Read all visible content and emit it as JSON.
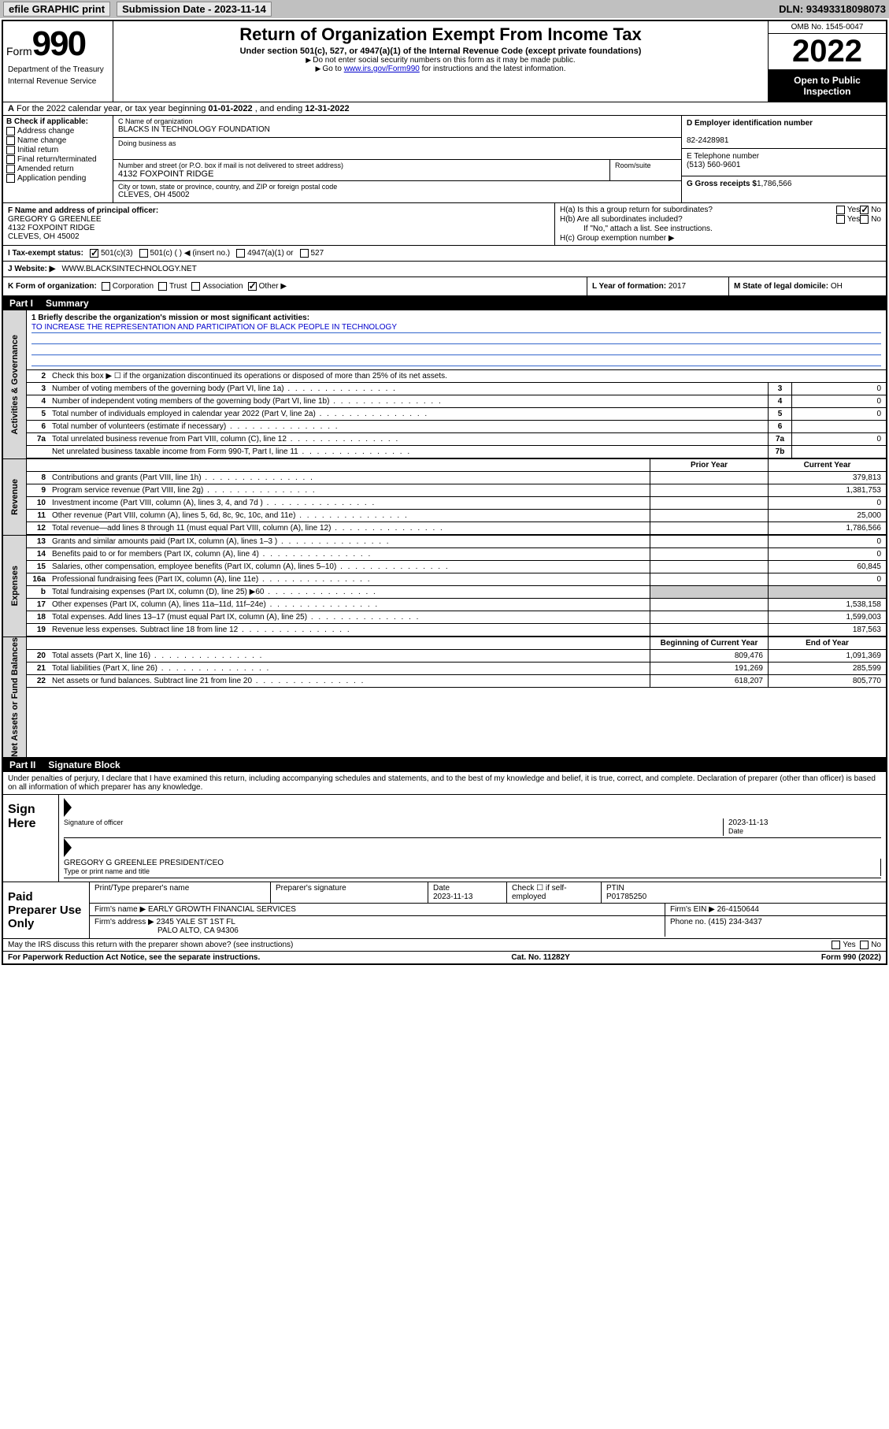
{
  "header": {
    "efile": "efile GRAPHIC print",
    "sub_label": "Submission Date - 2023-11-14",
    "dln": "DLN: 93493318098073"
  },
  "top": {
    "form_prefix": "Form",
    "form_num": "990",
    "dept": "Department of the Treasury",
    "irs": "Internal Revenue Service",
    "title": "Return of Organization Exempt From Income Tax",
    "subtitle": "Under section 501(c), 527, or 4947(a)(1) of the Internal Revenue Code (except private foundations)",
    "note1": "Do not enter social security numbers on this form as it may be made public.",
    "note2_pre": "Go to ",
    "note2_link": "www.irs.gov/Form990",
    "note2_post": " for instructions and the latest information.",
    "omb": "OMB No. 1545-0047",
    "year": "2022",
    "open": "Open to Public Inspection"
  },
  "rowA": {
    "text_pre": "For the 2022 calendar year, or tax year beginning ",
    "begin": "01-01-2022",
    "mid": " , and ending ",
    "end": "12-31-2022"
  },
  "blockB": {
    "title": "B Check if applicable:",
    "opts": [
      "Address change",
      "Name change",
      "Initial return",
      "Final return/terminated",
      "Amended return",
      "Application pending"
    ],
    "c_name_lbl": "C Name of organization",
    "c_name": "BLACKS IN TECHNOLOGY FOUNDATION",
    "dba_lbl": "Doing business as",
    "addr_lbl": "Number and street (or P.O. box if mail is not delivered to street address)",
    "addr": "4132 FOXPOINT RIDGE",
    "room_lbl": "Room/suite",
    "city_lbl": "City or town, state or province, country, and ZIP or foreign postal code",
    "city": "CLEVES, OH  45002",
    "d_lbl": "D Employer identification number",
    "d_val": "82-2428981",
    "e_lbl": "E Telephone number",
    "e_val": "(513) 560-9601",
    "g_lbl": "G Gross receipts $",
    "g_val": "1,786,566"
  },
  "blockFH": {
    "f_lbl": "F Name and address of principal officer:",
    "f_name": "GREGORY G GREENLEE",
    "f_addr1": "4132 FOXPOINT RIDGE",
    "f_addr2": "CLEVES, OH  45002",
    "ha": "H(a)  Is this a group return for subordinates?",
    "hb": "H(b)  Are all subordinates included?",
    "hb_note": "If \"No,\" attach a list. See instructions.",
    "hc": "H(c)  Group exemption number ▶",
    "yes": "Yes",
    "no": "No"
  },
  "rowI": {
    "lbl": "I  Tax-exempt status:",
    "o1": "501(c)(3)",
    "o2": "501(c) (  ) ◀ (insert no.)",
    "o3": "4947(a)(1) or",
    "o4": "527"
  },
  "rowJ": {
    "lbl": "J  Website: ▶",
    "val": "WWW.BLACKSINTECHNOLOGY.NET"
  },
  "rowK": {
    "lbl": "K Form of organization:",
    "opts": [
      "Corporation",
      "Trust",
      "Association",
      "Other ▶"
    ],
    "l_lbl": "L Year of formation:",
    "l_val": "2017",
    "m_lbl": "M State of legal domicile:",
    "m_val": "OH"
  },
  "part1": {
    "n": "Part I",
    "t": "Summary"
  },
  "gov": {
    "tab": "Activities & Governance",
    "mission_lbl": "1  Briefly describe the organization's mission or most significant activities:",
    "mission": "TO INCREASE THE REPRESENTATION AND PARTICIPATION OF BLACK PEOPLE IN TECHNOLOGY",
    "l2": "Check this box ▶ ☐  if the organization discontinued its operations or disposed of more than 25% of its net assets.",
    "rows": [
      {
        "n": "3",
        "d": "Number of voting members of the governing body (Part VI, line 1a)",
        "box": "3",
        "v": "0"
      },
      {
        "n": "4",
        "d": "Number of independent voting members of the governing body (Part VI, line 1b)",
        "box": "4",
        "v": "0"
      },
      {
        "n": "5",
        "d": "Total number of individuals employed in calendar year 2022 (Part V, line 2a)",
        "box": "5",
        "v": "0"
      },
      {
        "n": "6",
        "d": "Total number of volunteers (estimate if necessary)",
        "box": "6",
        "v": ""
      },
      {
        "n": "7a",
        "d": "Total unrelated business revenue from Part VIII, column (C), line 12",
        "box": "7a",
        "v": "0"
      },
      {
        "n": "",
        "d": "Net unrelated business taxable income from Form 990-T, Part I, line 11",
        "box": "7b",
        "v": ""
      }
    ]
  },
  "rev": {
    "tab": "Revenue",
    "h1": "Prior Year",
    "h2": "Current Year",
    "rows": [
      {
        "n": "8",
        "d": "Contributions and grants (Part VIII, line 1h)",
        "c1": "",
        "c2": "379,813"
      },
      {
        "n": "9",
        "d": "Program service revenue (Part VIII, line 2g)",
        "c1": "",
        "c2": "1,381,753"
      },
      {
        "n": "10",
        "d": "Investment income (Part VIII, column (A), lines 3, 4, and 7d )",
        "c1": "",
        "c2": "0"
      },
      {
        "n": "11",
        "d": "Other revenue (Part VIII, column (A), lines 5, 6d, 8c, 9c, 10c, and 11e)",
        "c1": "",
        "c2": "25,000"
      },
      {
        "n": "12",
        "d": "Total revenue—add lines 8 through 11 (must equal Part VIII, column (A), line 12)",
        "c1": "",
        "c2": "1,786,566"
      }
    ]
  },
  "exp": {
    "tab": "Expenses",
    "rows": [
      {
        "n": "13",
        "d": "Grants and similar amounts paid (Part IX, column (A), lines 1–3 )",
        "c1": "",
        "c2": "0"
      },
      {
        "n": "14",
        "d": "Benefits paid to or for members (Part IX, column (A), line 4)",
        "c1": "",
        "c2": "0"
      },
      {
        "n": "15",
        "d": "Salaries, other compensation, employee benefits (Part IX, column (A), lines 5–10)",
        "c1": "",
        "c2": "60,845"
      },
      {
        "n": "16a",
        "d": "Professional fundraising fees (Part IX, column (A), line 11e)",
        "c1": "",
        "c2": "0"
      },
      {
        "n": "b",
        "d": "Total fundraising expenses (Part IX, column (D), line 25) ▶60",
        "c1": "—",
        "c2": "—"
      },
      {
        "n": "17",
        "d": "Other expenses (Part IX, column (A), lines 11a–11d, 11f–24e)",
        "c1": "",
        "c2": "1,538,158"
      },
      {
        "n": "18",
        "d": "Total expenses. Add lines 13–17 (must equal Part IX, column (A), line 25)",
        "c1": "",
        "c2": "1,599,003"
      },
      {
        "n": "19",
        "d": "Revenue less expenses. Subtract line 18 from line 12",
        "c1": "",
        "c2": "187,563"
      }
    ]
  },
  "assets": {
    "tab": "Net Assets or Fund Balances",
    "h1": "Beginning of Current Year",
    "h2": "End of Year",
    "rows": [
      {
        "n": "20",
        "d": "Total assets (Part X, line 16)",
        "c1": "809,476",
        "c2": "1,091,369"
      },
      {
        "n": "21",
        "d": "Total liabilities (Part X, line 26)",
        "c1": "191,269",
        "c2": "285,599"
      },
      {
        "n": "22",
        "d": "Net assets or fund balances. Subtract line 21 from line 20",
        "c1": "618,207",
        "c2": "805,770"
      }
    ]
  },
  "part2": {
    "n": "Part II",
    "t": "Signature Block"
  },
  "penalties": "Under penalties of perjury, I declare that I have examined this return, including accompanying schedules and statements, and to the best of my knowledge and belief, it is true, correct, and complete. Declaration of preparer (other than officer) is based on all information of which preparer has any knowledge.",
  "sign": {
    "lbl": "Sign Here",
    "sig_lbl": "Signature of officer",
    "date_lbl": "Date",
    "date": "2023-11-13",
    "name": "GREGORY G GREENLEE  PRESIDENT/CEO",
    "name_lbl": "Type or print name and title"
  },
  "paid": {
    "lbl": "Paid Preparer Use Only",
    "c1": "Print/Type preparer's name",
    "c2": "Preparer's signature",
    "c3": "Date",
    "c3v": "2023-11-13",
    "c4": "Check ☐ if self-employed",
    "c5": "PTIN",
    "c5v": "P01785250",
    "firm_lbl": "Firm's name  ▶",
    "firm": "EARLY GROWTH FINANCIAL SERVICES",
    "ein_lbl": "Firm's EIN ▶",
    "ein": "26-4150644",
    "addr_lbl": "Firm's address ▶",
    "addr1": "2345 YALE ST 1ST FL",
    "addr2": "PALO ALTO, CA  94306",
    "phone_lbl": "Phone no.",
    "phone": "(415) 234-3437"
  },
  "footer": {
    "discuss": "May the IRS discuss this return with the preparer shown above? (see instructions)",
    "yes": "Yes",
    "no": "No",
    "pra": "For Paperwork Reduction Act Notice, see the separate instructions.",
    "cat": "Cat. No. 11282Y",
    "form": "Form 990 (2022)"
  }
}
